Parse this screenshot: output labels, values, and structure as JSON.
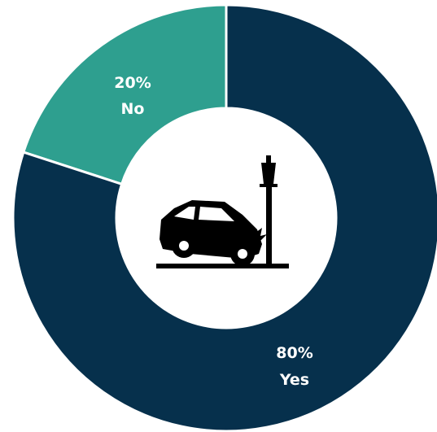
{
  "chart_data": {
    "type": "pie",
    "style": "donut",
    "categories": [
      "No",
      "Yes"
    ],
    "values": [
      20,
      80
    ],
    "labels": [
      {
        "percent": "20%",
        "name": "No"
      },
      {
        "percent": "80%",
        "name": "Yes"
      }
    ],
    "colors": [
      "#2e9f8f",
      "#06304c"
    ],
    "center_icon": "car-crash-into-lamppost-icon"
  }
}
